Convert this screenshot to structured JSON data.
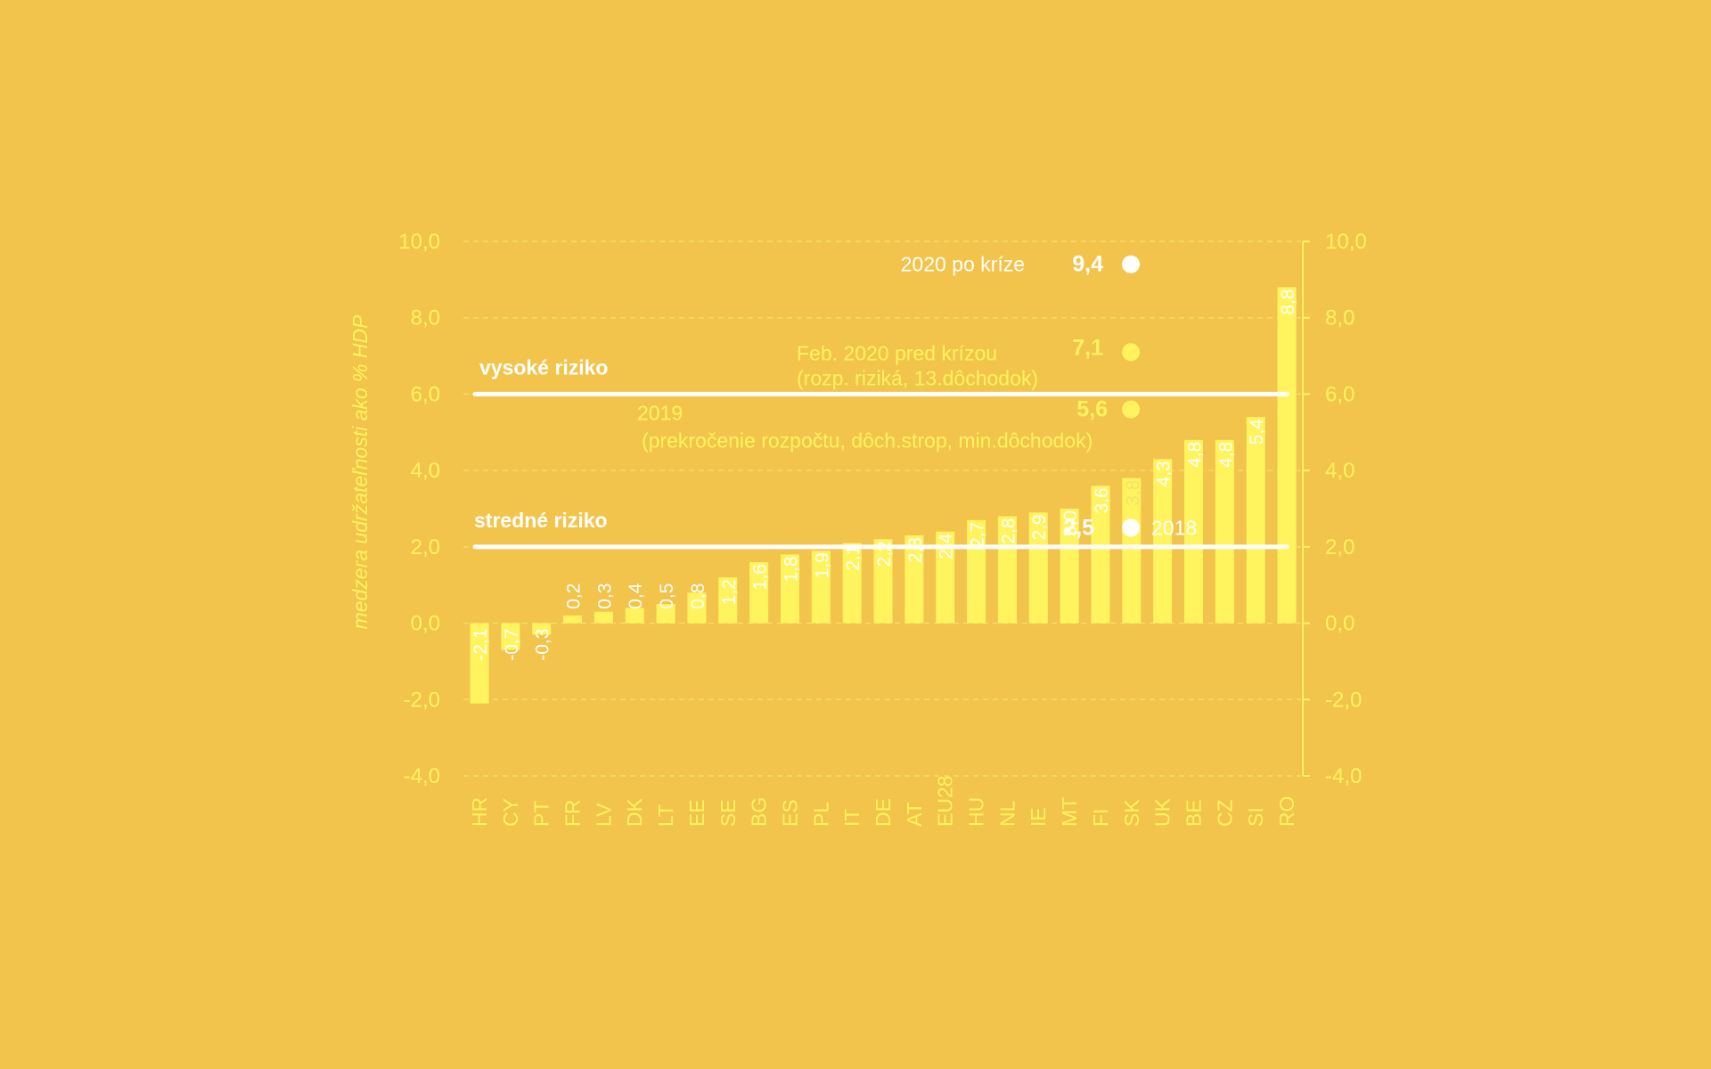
{
  "colors": {
    "background": "#F2C44C",
    "bar": "#FFF45E",
    "accent_yellow": "#FFF45E",
    "white": "#FFFFFF",
    "grid": "#F7DB6A"
  },
  "chart_data": {
    "type": "bar",
    "ylabel": "medzera udržateľnosti ako % HDP",
    "ylim": [
      -4,
      10
    ],
    "ytick_step": 2,
    "ytick_labels": [
      "-4,0",
      "-2,0",
      "0,0",
      "2,0",
      "4,0",
      "6,0",
      "8,0",
      "10,0"
    ],
    "grid": "horizontal dashed",
    "secondary_y_axis": true,
    "categories": [
      "HR",
      "CY",
      "PT",
      "FR",
      "LV",
      "DK",
      "LT",
      "EE",
      "SE",
      "BG",
      "ES",
      "PL",
      "IT",
      "DE",
      "AT",
      "EU28",
      "HU",
      "NL",
      "IE",
      "MT",
      "FI",
      "SK",
      "UK",
      "BE",
      "CZ",
      "SI",
      "RO"
    ],
    "values": [
      -2.1,
      -0.7,
      -0.3,
      0.2,
      0.3,
      0.4,
      0.5,
      0.8,
      1.2,
      1.6,
      1.8,
      1.9,
      2.1,
      2.2,
      2.3,
      2.4,
      2.7,
      2.8,
      2.9,
      3.0,
      3.6,
      3.8,
      4.3,
      4.8,
      4.8,
      5.4,
      8.8
    ],
    "value_labels": [
      "-2,1",
      "-0,7",
      "-0,3",
      "0,2",
      "0,3",
      "0,4",
      "0,5",
      "0,8",
      "1,2",
      "1,6",
      "1,8",
      "1,9",
      "2,1",
      "2,2",
      "2,3",
      "2,4",
      "2,7",
      "2,8",
      "2,9",
      "3,0",
      "3,6",
      "3,8",
      "4,3",
      "4,8",
      "4,8",
      "5,4",
      "8,8"
    ],
    "thresholds": [
      {
        "value": 6,
        "label": "vysoké riziko"
      },
      {
        "value": 2,
        "label": "stredné riziko"
      }
    ],
    "sk_points": [
      {
        "value": 9.4,
        "value_label": "9,4",
        "label_lines": [
          "2020  po kríze"
        ],
        "color": "#FFFFFF"
      },
      {
        "value": 7.1,
        "value_label": "7,1",
        "label_lines": [
          "Feb. 2020  pred krízou",
          "(rozp. riziká, 13.dôchodok)"
        ],
        "color": "#FFF45E"
      },
      {
        "value": 5.6,
        "value_label": "5,6",
        "label_lines": [
          "2019",
          "(prekročenie rozpočtu, dôch.strop, min.dôchodok)"
        ],
        "color": "#FFF45E"
      },
      {
        "value": 2.5,
        "value_label": "2,5",
        "label_lines": [
          "2018"
        ],
        "color": "#FFFFFF"
      }
    ]
  }
}
